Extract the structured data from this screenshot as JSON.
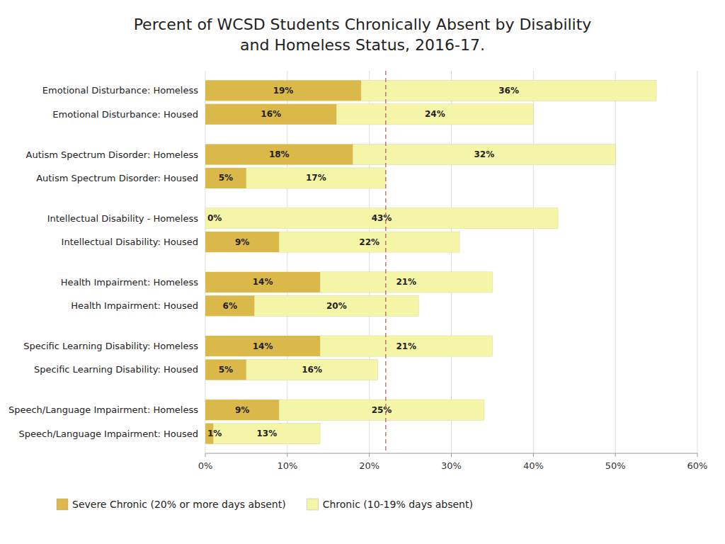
{
  "chart_data": {
    "type": "bar",
    "orientation": "horizontal",
    "stacked": true,
    "data_labels": true,
    "grid": true,
    "legend": "bottom",
    "title": "Percent of WCSD Students Chronically Absent by Disability\nand Homeless Status, 2016-17.",
    "categories": [
      "Emotional Disturbance: Homeless",
      "Emotional Disturbance: Housed",
      "Autism Spectrum Disorder: Homeless",
      "Autism Spectrum Disorder: Housed",
      "Intellectual Disability - Homeless",
      "Intellectual Disability: Housed",
      "Health Impairment: Homeless",
      "Health Impairment: Housed",
      "Specific Learning Disability: Homeless",
      "Specific Learning Disability: Housed",
      "Speech/Language Impairment: Homeless",
      "Speech/Language Impairment: Housed"
    ],
    "series": [
      {
        "name": "Severe Chronic (20% or more days absent)",
        "color": "#DAB84A",
        "values": [
          19,
          16,
          18,
          5,
          0,
          9,
          14,
          6,
          14,
          5,
          9,
          1
        ],
        "value_labels": [
          "19%",
          "16%",
          "18%",
          "5%",
          "0%",
          "9%",
          "14%",
          "6%",
          "14%",
          "5%",
          "9%",
          "1%"
        ]
      },
      {
        "name": "Chronic (10-19% days absent)",
        "color": "#F5F5A8",
        "values": [
          36,
          24,
          32,
          17,
          43,
          22,
          21,
          20,
          21,
          16,
          25,
          13
        ],
        "value_labels": [
          "36%",
          "24%",
          "32%",
          "17%",
          "43%",
          "22%",
          "21%",
          "20%",
          "21%",
          "16%",
          "25%",
          "13%"
        ]
      }
    ],
    "reference_line": 22,
    "xlim": [
      0,
      60
    ],
    "xticks": [
      {
        "value": 0,
        "label": "0%"
      },
      {
        "value": 10,
        "label": "10%"
      },
      {
        "value": 20,
        "label": "20%"
      },
      {
        "value": 30,
        "label": "30%"
      },
      {
        "value": 40,
        "label": "40%"
      },
      {
        "value": 50,
        "label": "50%"
      },
      {
        "value": 60,
        "label": "60%"
      }
    ]
  }
}
